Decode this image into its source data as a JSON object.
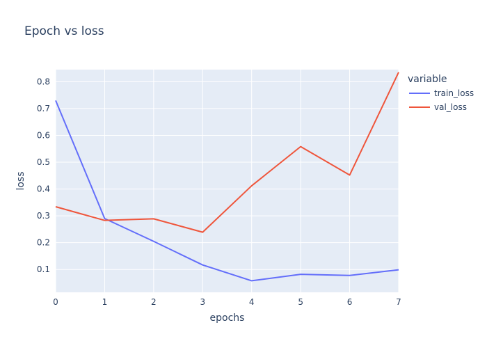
{
  "chart_data": {
    "type": "line",
    "title": "Epoch vs loss",
    "xlabel": "epochs",
    "ylabel": "loss",
    "x": [
      0,
      1,
      2,
      3,
      4,
      5,
      6,
      7
    ],
    "xlim": [
      0,
      7
    ],
    "ylim": [
      0.015,
      0.845
    ],
    "xticks": [
      0,
      1,
      2,
      3,
      4,
      5,
      6,
      7
    ],
    "yticks": [
      0.1,
      0.2,
      0.3,
      0.4,
      0.5,
      0.6,
      0.7,
      0.8
    ],
    "grid": true,
    "legend": {
      "title": "variable",
      "placement": "right"
    },
    "series": [
      {
        "name": "train_loss",
        "color": "#636efa",
        "values": [
          0.73,
          0.29,
          0.205,
          0.117,
          0.058,
          0.082,
          0.078,
          0.099
        ]
      },
      {
        "name": "val_loss",
        "color": "#ef553b",
        "values": [
          0.334,
          0.283,
          0.289,
          0.239,
          0.412,
          0.558,
          0.452,
          0.835
        ]
      }
    ],
    "colors": {
      "plot_background": "#e5ecf6",
      "grid": "#ffffff",
      "text": "#2a3f5f"
    }
  }
}
